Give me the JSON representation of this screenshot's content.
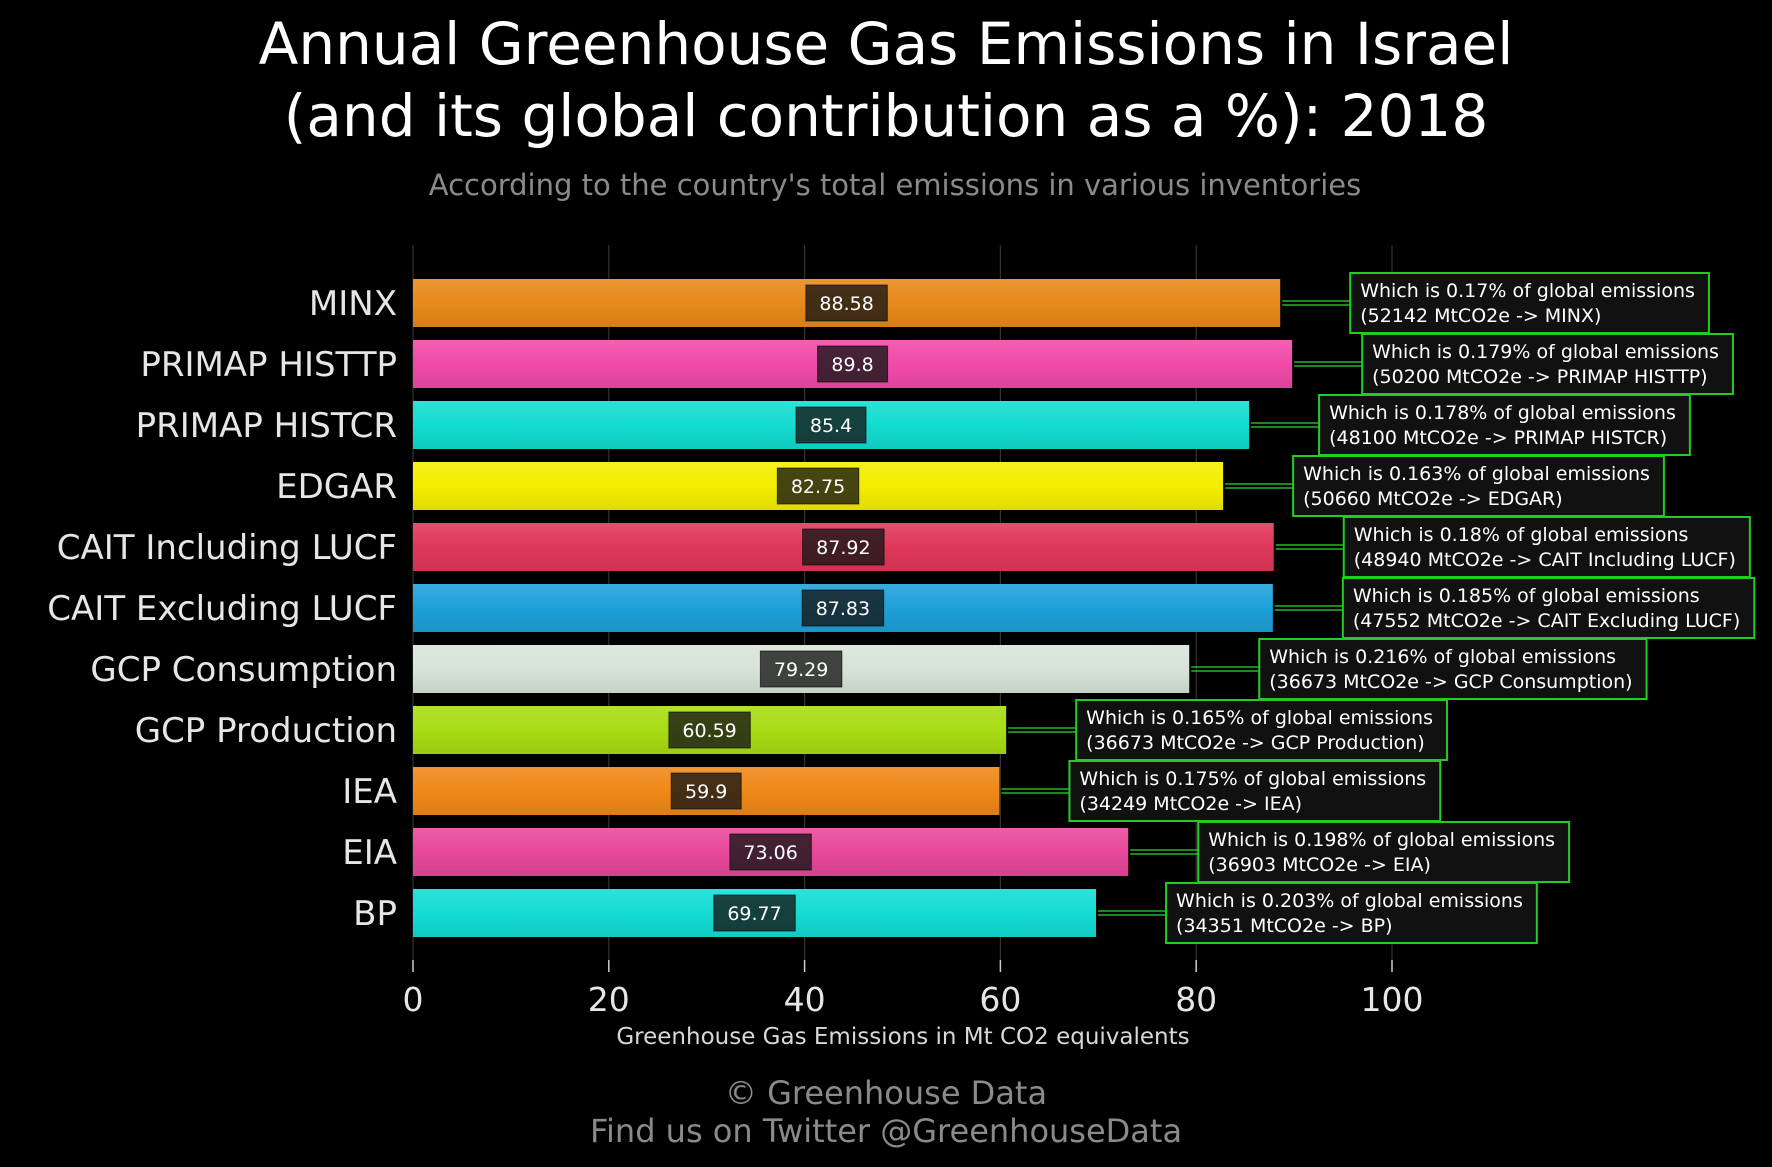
{
  "chart_data": {
    "type": "bar",
    "orientation": "horizontal",
    "title_lines": [
      "Annual Greenhouse Gas Emissions in Israel",
      "(and its global contribution as a %): 2018"
    ],
    "subtitle": "According to the country's total emissions in various inventories",
    "xlabel": "Greenhouse Gas Emissions in Mt CO2 equivalents",
    "xlim": [
      0,
      115
    ],
    "xticks": [
      0,
      20,
      40,
      60,
      80,
      100
    ],
    "grid": "vertical",
    "bars": [
      {
        "category": "MINX",
        "value": 88.58,
        "value_label": "88.58",
        "color": "#e8891a",
        "note_line1": "Which is 0.17% of global emissions",
        "note_line2": "(52142 MtCO2e -> MINX)"
      },
      {
        "category": "PRIMAP HISTTP",
        "value": 89.8,
        "value_label": "89.8",
        "color": "#f04aa8",
        "note_line1": "Which is 0.179% of global emissions",
        "note_line2": "(50200 MtCO2e -> PRIMAP HISTTP)"
      },
      {
        "category": "PRIMAP HISTCR",
        "value": 85.4,
        "value_label": "85.4",
        "color": "#14dcd0",
        "note_line1": "Which is 0.178% of global emissions",
        "note_line2": "(48100 MtCO2e -> PRIMAP HISTCR)"
      },
      {
        "category": "EDGAR",
        "value": 82.75,
        "value_label": "82.75",
        "color": "#f4ee00",
        "note_line1": "Which is 0.163% of global emissions",
        "note_line2": "(50660 MtCO2e -> EDGAR)"
      },
      {
        "category": "CAIT Including LUCF",
        "value": 87.92,
        "value_label": "87.92",
        "color": "#e0385a",
        "note_line1": "Which is 0.18% of global emissions",
        "note_line2": "(48940 MtCO2e -> CAIT Including LUCF)"
      },
      {
        "category": "CAIT Excluding LUCF",
        "value": 87.83,
        "value_label": "87.83",
        "color": "#1ea0d8",
        "note_line1": "Which is 0.185% of global emissions",
        "note_line2": "(47552 MtCO2e -> CAIT Excluding LUCF)"
      },
      {
        "category": "GCP Consumption",
        "value": 79.29,
        "value_label": "79.29",
        "color": "#d8e4d8",
        "note_line1": "Which is 0.216% of global emissions",
        "note_line2": "(36673 MtCO2e -> GCP Consumption)"
      },
      {
        "category": "GCP Production",
        "value": 60.59,
        "value_label": "60.59",
        "color": "#a8dc14",
        "note_line1": "Which is 0.165% of global emissions",
        "note_line2": "(36673 MtCO2e -> GCP Production)"
      },
      {
        "category": "IEA",
        "value": 59.9,
        "value_label": "59.9",
        "color": "#f08818",
        "note_line1": "Which is 0.175% of global emissions",
        "note_line2": "(34249 MtCO2e -> IEA)"
      },
      {
        "category": "EIA",
        "value": 73.06,
        "value_label": "73.06",
        "color": "#e8489a",
        "note_line1": "Which is 0.198% of global emissions",
        "note_line2": "(36903 MtCO2e -> EIA)"
      },
      {
        "category": "BP",
        "value": 69.77,
        "value_label": "69.77",
        "color": "#14dcd4",
        "note_line1": "Which is 0.203% of global emissions",
        "note_line2": "(34351 MtCO2e -> BP)"
      }
    ]
  },
  "credit": {
    "line1": "© Greenhouse Data",
    "line2": "Find us on Twitter @GreenhouseData"
  },
  "colors": {
    "background": "#000000",
    "annotation_border": "#22cc22",
    "connector": "#33ff33",
    "grid": "#333333"
  }
}
